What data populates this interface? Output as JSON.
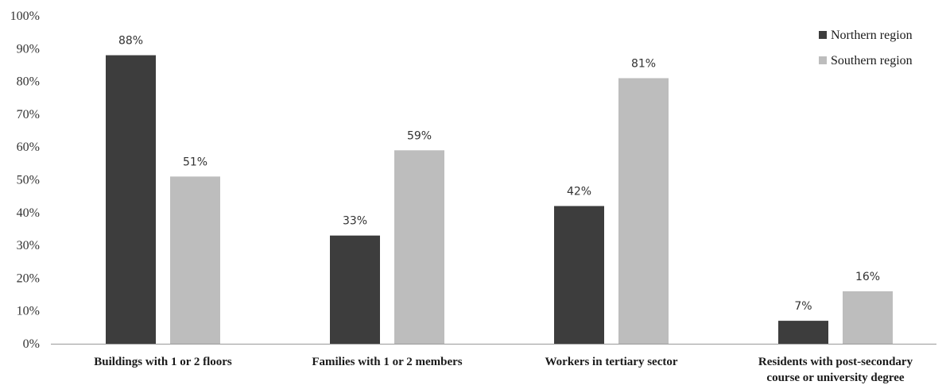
{
  "chart_data": {
    "type": "bar",
    "categories": [
      [
        "Buildings with 1 or 2 floors"
      ],
      [
        "Families with 1 or 2 members"
      ],
      [
        "Workers in tertiary sector"
      ],
      [
        "Residents with post-secondary",
        "course or university degree"
      ]
    ],
    "series": [
      {
        "name": "Northern region",
        "color": "#3d3d3d",
        "values": [
          88,
          33,
          42,
          7
        ],
        "labels": [
          "88%",
          "33%",
          "42%",
          "7%"
        ]
      },
      {
        "name": "Southern region",
        "color": "#bdbdbd",
        "values": [
          51,
          59,
          81,
          16
        ],
        "labels": [
          "51%",
          "59%",
          "81%",
          "16%"
        ]
      }
    ],
    "ylim": [
      0,
      100
    ],
    "yticks": [
      0,
      10,
      20,
      30,
      40,
      50,
      60,
      70,
      80,
      90,
      100
    ],
    "ytick_labels": [
      "0%",
      "10%",
      "20%",
      "30%",
      "40%",
      "50%",
      "60%",
      "70%",
      "80%",
      "90%",
      "100%"
    ],
    "title": "",
    "xlabel": "",
    "ylabel": "",
    "grid": false,
    "legend_position": "top-right"
  }
}
